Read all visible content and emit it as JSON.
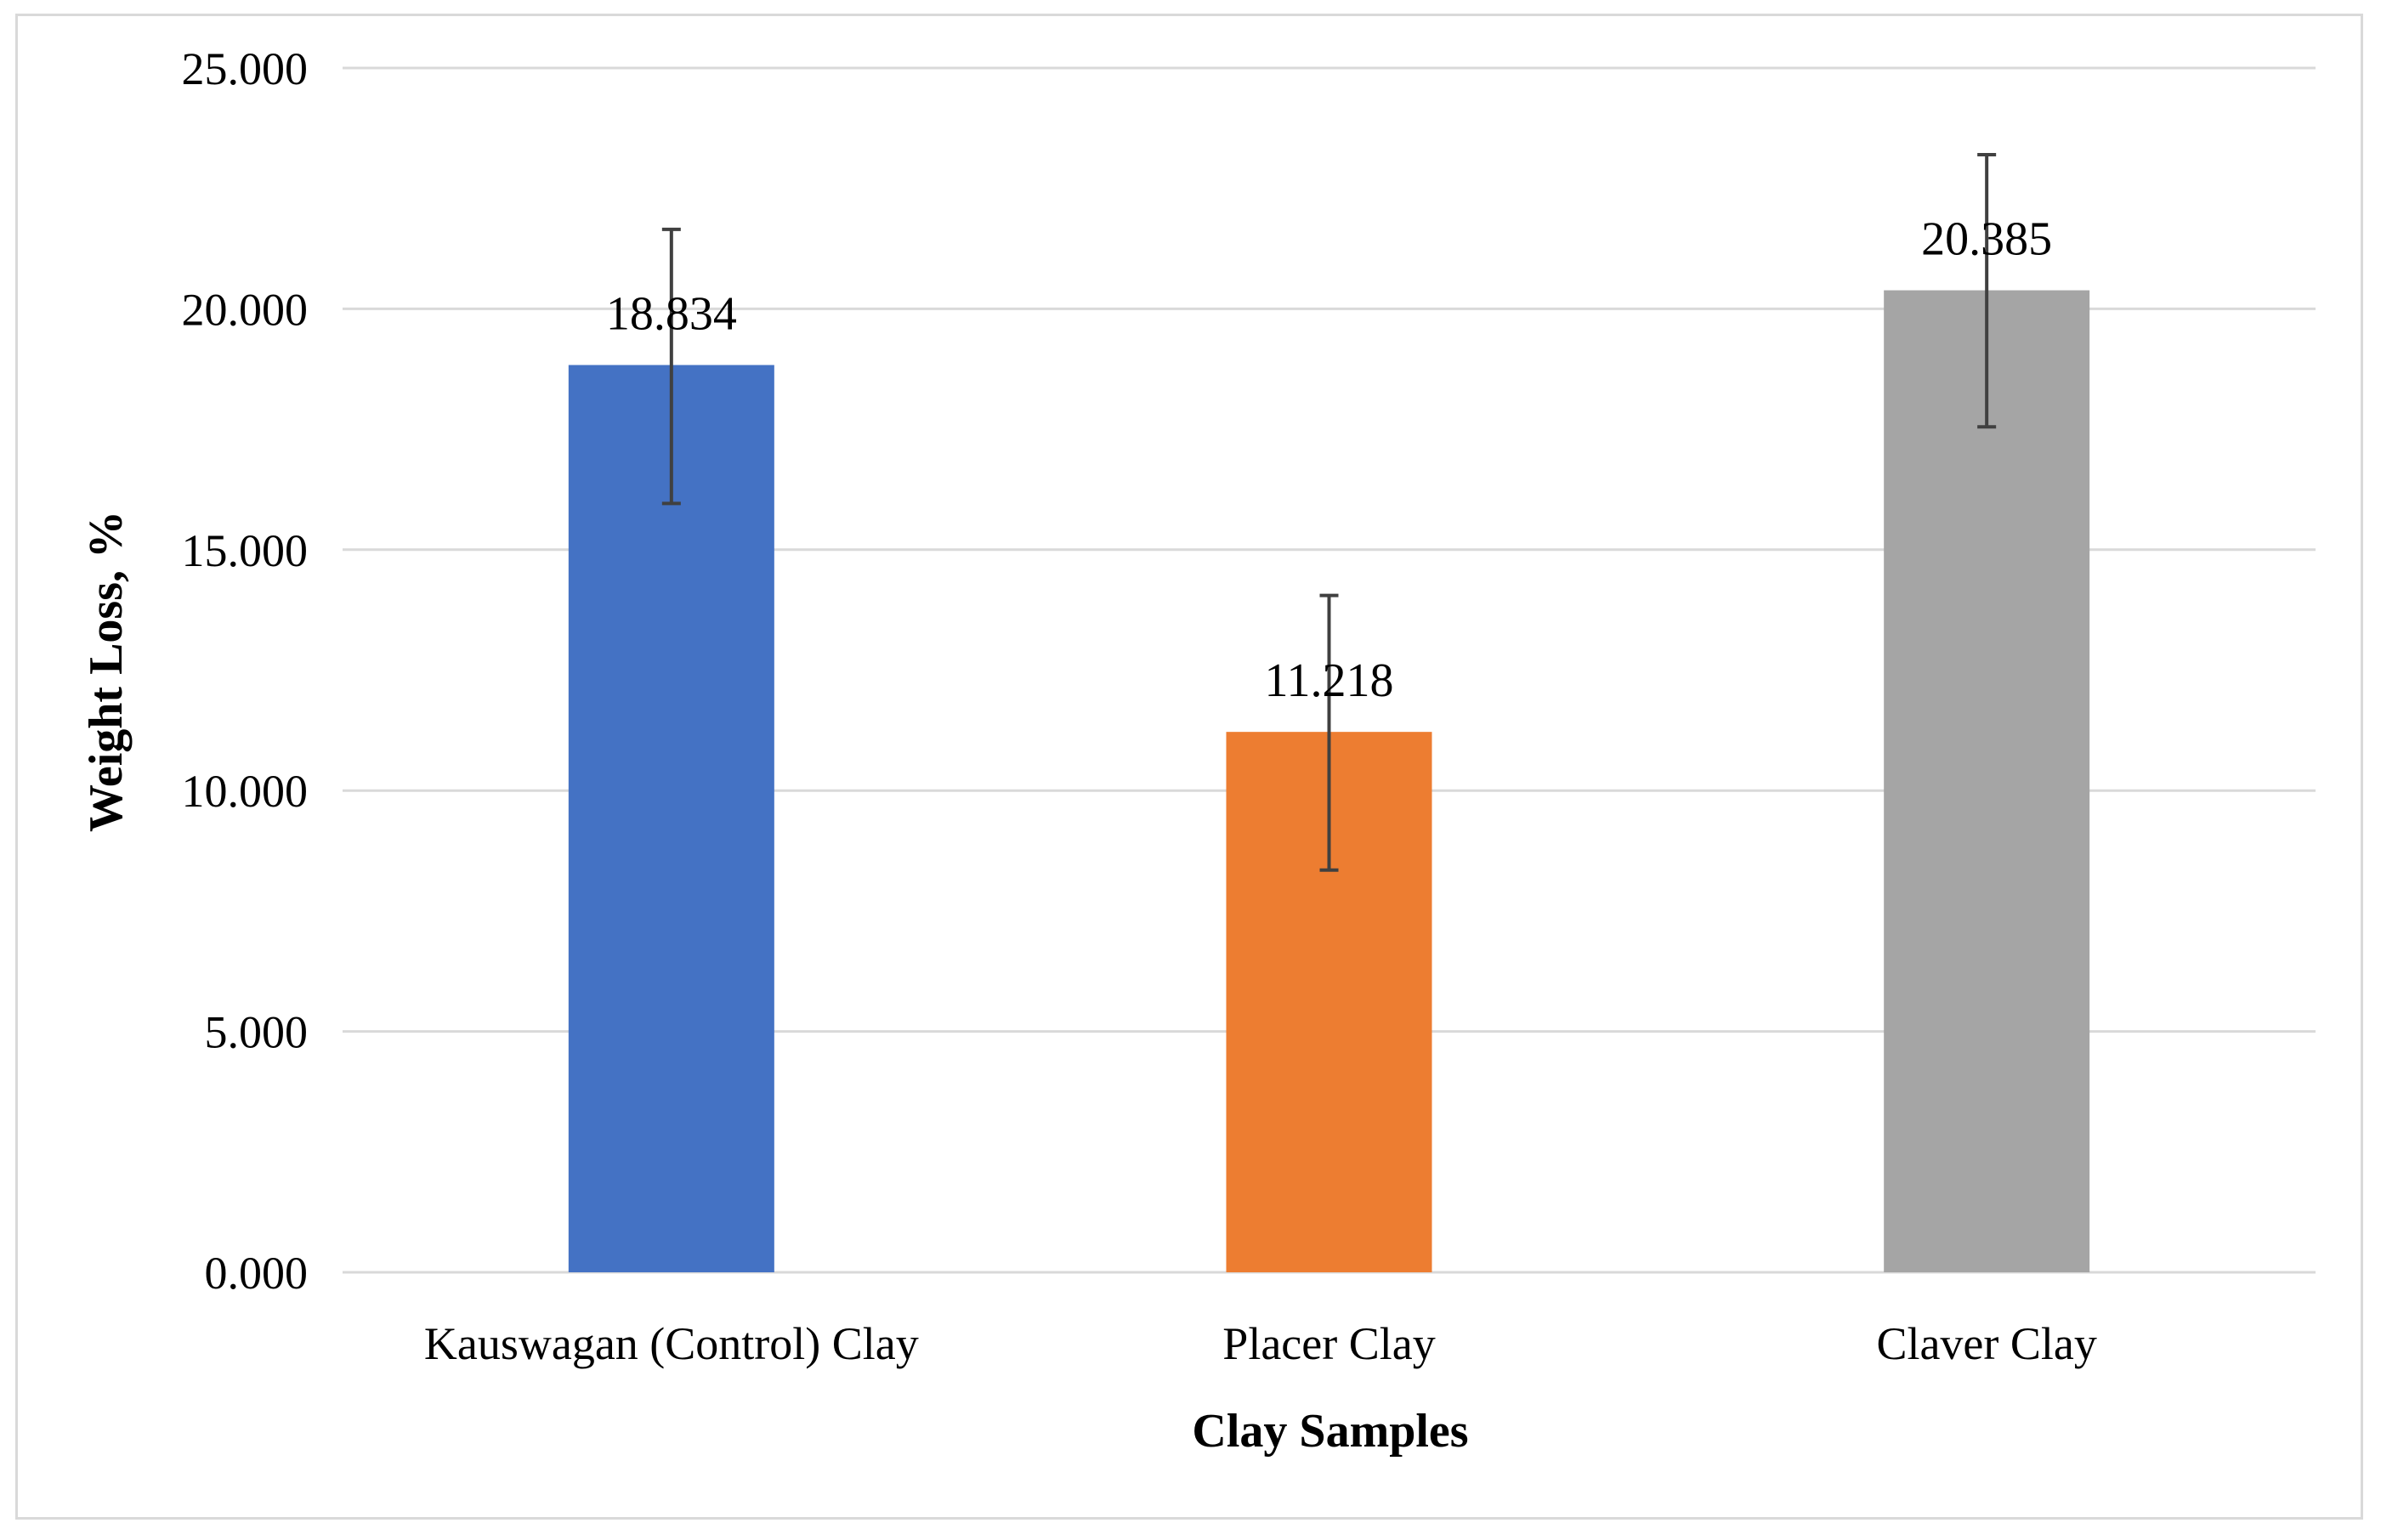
{
  "chart_data": {
    "type": "bar",
    "title": "",
    "xlabel": "Clay Samples",
    "ylabel": "Weight Loss, %",
    "ylim": [
      0,
      25
    ],
    "yticks": [
      0,
      5,
      10,
      15,
      20,
      25
    ],
    "ytick_labels": [
      "0.000",
      "5.000",
      "10.000",
      "15.000",
      "20.000",
      "25.000"
    ],
    "grid": true,
    "legend": "none",
    "categories": [
      "Kauswagan (Control) Clay",
      "Placer Clay",
      "Claver Clay"
    ],
    "values": [
      18.834,
      11.218,
      20.385
    ],
    "data_labels": [
      "18.834",
      "11.218",
      "20.385"
    ],
    "error_bars": {
      "low": [
        15.96,
        8.35,
        17.55
      ],
      "high": [
        21.65,
        14.05,
        23.2
      ]
    },
    "colors": [
      "#4472c4",
      "#ed7d31",
      "#a5a5a5"
    ],
    "gridline_color": "#d9d9d9",
    "error_bar_color": "#404040"
  }
}
